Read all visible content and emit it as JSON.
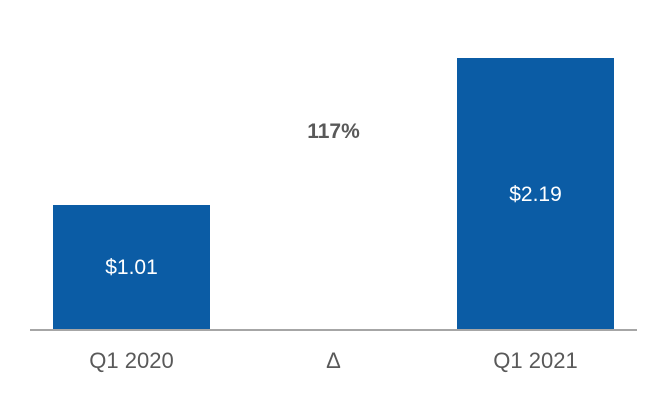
{
  "chart_data": {
    "type": "bar",
    "categories": [
      "Q1 2020",
      "Δ",
      "Q1 2021"
    ],
    "values": [
      1.01,
      null,
      2.19
    ],
    "data_labels": [
      "$1.01",
      "",
      "$2.19"
    ],
    "annotations": [
      {
        "text": "117%",
        "category": "Δ"
      }
    ],
    "title": "",
    "xlabel": "",
    "ylabel": "",
    "ylim": [
      0,
      2.19
    ],
    "grid": false,
    "legend": false,
    "axis_line": "x-only",
    "colors": {
      "bar": "#0B5CA5",
      "bar_value_label": "#FFFFFF",
      "annotation": "#595959",
      "category_label": "#595959",
      "axis_line": "#A6A6A6",
      "background": "#FFFFFF"
    }
  }
}
